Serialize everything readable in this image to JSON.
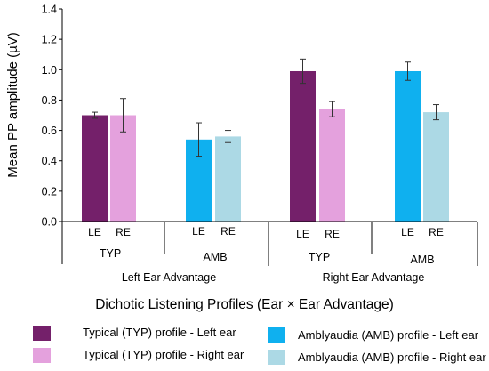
{
  "chart_data": {
    "type": "bar",
    "ylabel": "Mean PP amplitude (µV)",
    "xlabel": "Dichotic Listening Profiles (Ear × Ear Advantage)",
    "ylim": [
      0,
      1.4
    ],
    "yticks": [
      "0.0",
      "0.2",
      "0.4",
      "0.6",
      "0.8",
      "1.0",
      "1.2",
      "1.4"
    ],
    "ytick_values": [
      0,
      0.2,
      0.4,
      0.6,
      0.8,
      1.0,
      1.2,
      1.4
    ],
    "bars": [
      {
        "ear": "LE",
        "profile": "TYP",
        "advantage": "Left Ear Advantage",
        "value": 0.7,
        "error": 0.02,
        "series": 0
      },
      {
        "ear": "RE",
        "profile": "TYP",
        "advantage": "Left Ear Advantage",
        "value": 0.7,
        "error": 0.11,
        "series": 1
      },
      {
        "ear": "LE",
        "profile": "AMB",
        "advantage": "Left Ear Advantage",
        "value": 0.54,
        "error": 0.11,
        "series": 2
      },
      {
        "ear": "RE",
        "profile": "AMB",
        "advantage": "Left Ear Advantage",
        "value": 0.56,
        "error": 0.04,
        "series": 3
      },
      {
        "ear": "LE",
        "profile": "TYP",
        "advantage": "Right Ear Advantage",
        "value": 0.99,
        "error": 0.08,
        "series": 0
      },
      {
        "ear": "RE",
        "profile": "TYP",
        "advantage": "Right Ear Advantage",
        "value": 0.74,
        "error": 0.05,
        "series": 1
      },
      {
        "ear": "LE",
        "profile": "AMB",
        "advantage": "Right Ear Advantage",
        "value": 0.99,
        "error": 0.06,
        "series": 2
      },
      {
        "ear": "RE",
        "profile": "AMB",
        "advantage": "Right Ear Advantage",
        "value": 0.72,
        "error": 0.05,
        "series": 3
      }
    ],
    "profile_groups": [
      "TYP",
      "AMB",
      "TYP",
      "AMB"
    ],
    "advantage_groups": [
      "Left Ear Advantage",
      "Right Ear Advantage"
    ],
    "series": [
      {
        "name": "Typical (TYP) profile - Left ear",
        "color": "#74206a"
      },
      {
        "name": "Typical (TYP) profile - Right ear",
        "color": "#e4a1dd"
      },
      {
        "name": "Amblyaudia (AMB) profile - Left ear",
        "color": "#0fb0ef"
      },
      {
        "name": "Amblyaudia (AMB) profile - Right ear",
        "color": "#acd9e5"
      }
    ],
    "grid": false,
    "legend_position": "bottom"
  }
}
